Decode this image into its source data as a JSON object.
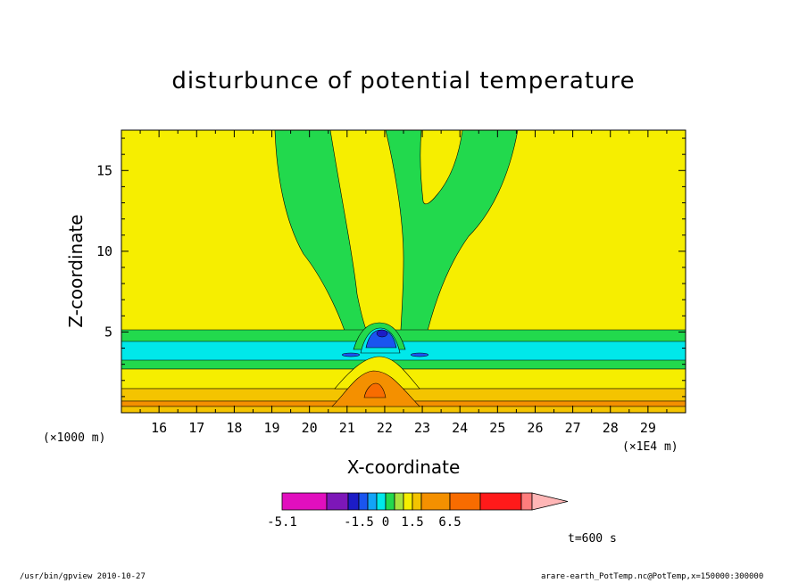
{
  "chart_data": {
    "type": "contour",
    "title": "disturbunce of potential temperature",
    "xlabel": "X-coordinate",
    "ylabel": "Z-coordinate",
    "x_unit": "(×1E4 m)",
    "y_unit": "(×1000 m)",
    "xlim": [
      15,
      30
    ],
    "ylim": [
      0,
      17.5
    ],
    "xticks": [
      16,
      17,
      18,
      19,
      20,
      21,
      22,
      23,
      24,
      25,
      26,
      27,
      28,
      29
    ],
    "yticks": [
      5,
      10,
      15
    ],
    "colorbar": {
      "labels": [
        "-5.1",
        "-1.5",
        "0",
        "1.5",
        "6.5"
      ],
      "colors": [
        "#e10fbe",
        "#7d17b8",
        "#1c1cc6",
        "#1a55f0",
        "#12a4f7",
        "#00e8ea",
        "#22d94d",
        "#a8e23e",
        "#f6ee00",
        "#f4c400",
        "#f49000",
        "#f86c00",
        "#ff1a1a",
        "#ff7d7d",
        "#ffb6b6"
      ]
    },
    "time_label": "t=600 s"
  },
  "footer": {
    "left": "/usr/bin/gpview  2010-10-27",
    "right": "arare-earth_PotTemp.nc@PotTemp,x=150000:300000"
  }
}
